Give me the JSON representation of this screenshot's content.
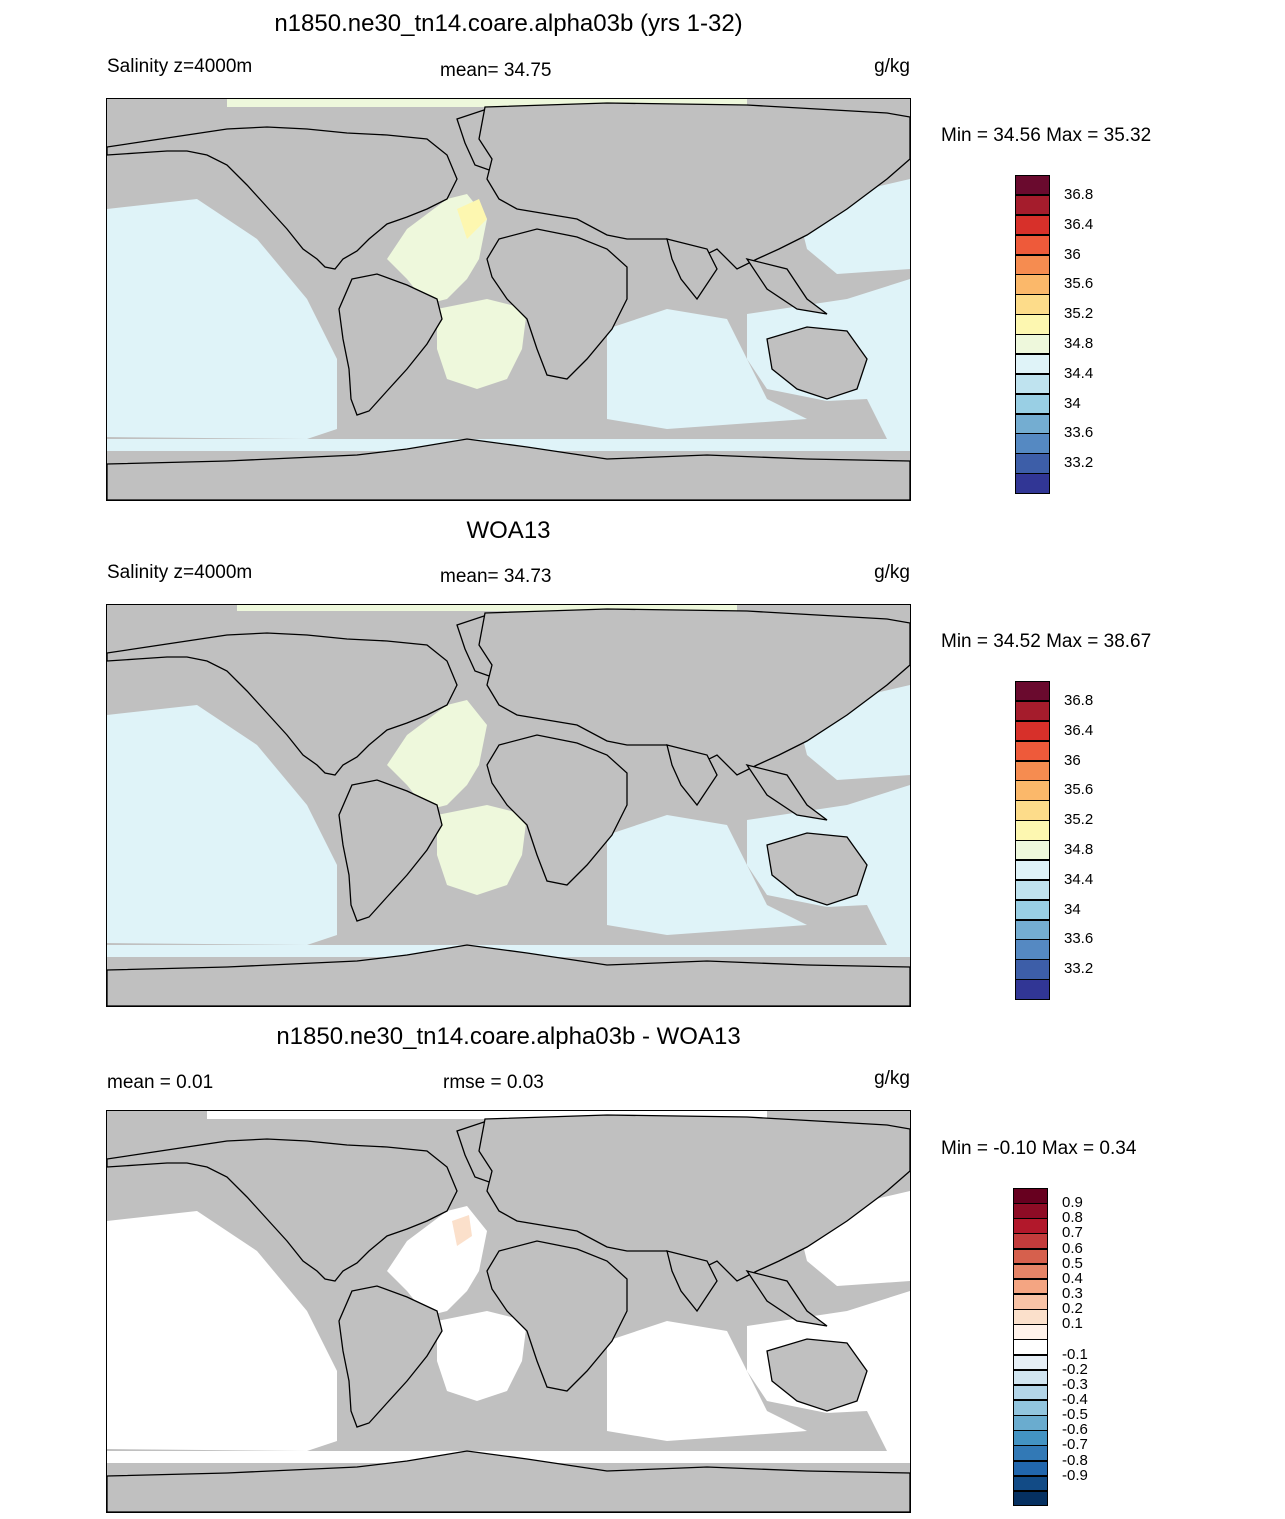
{
  "panels": [
    {
      "title": "n1850.ne30_tn14.coare.alpha03b (yrs 1-32)",
      "left_label": "Salinity z=4000m",
      "center_label": "mean=  34.75",
      "right_label": "g/kg",
      "minmax": "Min =  34.56 Max =  35.32",
      "colorbar": {
        "colors": [
          "#6a0a2e",
          "#a51c2c",
          "#d7302a",
          "#ee5a3a",
          "#f68c50",
          "#fbb86a",
          "#fddc8a",
          "#fdf7b0",
          "#eef8dc",
          "#dff3f8",
          "#bfe3ef",
          "#99cfe4",
          "#74add1",
          "#5589c2",
          "#3d5ea8",
          "#313695"
        ],
        "labels": [
          "36.8",
          "36.4",
          "36",
          "35.6",
          "35.2",
          "34.8",
          "34.4",
          "34",
          "33.6",
          "33.2"
        ]
      }
    },
    {
      "title": "WOA13",
      "left_label": "Salinity z=4000m",
      "center_label": "mean=  34.73",
      "right_label": "g/kg",
      "minmax": "Min =  34.52 Max =  38.67",
      "colorbar": {
        "colors": [
          "#6a0a2e",
          "#a51c2c",
          "#d7302a",
          "#ee5a3a",
          "#f68c50",
          "#fbb86a",
          "#fddc8a",
          "#fdf7b0",
          "#eef8dc",
          "#dff3f8",
          "#bfe3ef",
          "#99cfe4",
          "#74add1",
          "#5589c2",
          "#3d5ea8",
          "#313695"
        ],
        "labels": [
          "36.8",
          "36.4",
          "36",
          "35.6",
          "35.2",
          "34.8",
          "34.4",
          "34",
          "33.6",
          "33.2"
        ]
      }
    },
    {
      "title": "n1850.ne30_tn14.coare.alpha03b - WOA13",
      "left_label": "mean =   0.01",
      "center_label": "rmse =   0.03",
      "right_label": "g/kg",
      "minmax": "Min =  -0.10 Max =   0.34",
      "colorbar": {
        "colors": [
          "#67001f",
          "#8e0c25",
          "#b2182b",
          "#c33c3c",
          "#d6604d",
          "#e58467",
          "#f4a582",
          "#f8c3a6",
          "#fbe0cb",
          "#fff2ea",
          "#ffffff",
          "#e6eff6",
          "#d1e5f0",
          "#b3d5e8",
          "#92c5de",
          "#6aaccf",
          "#4393c3",
          "#3279b6",
          "#2166ac",
          "#124b86",
          "#053061"
        ],
        "labels": [
          "0.9",
          "0.8",
          "0.7",
          "0.6",
          "0.5",
          "0.4",
          "0.3",
          "0.2",
          "0.1",
          "-0.1",
          "-0.2",
          "-0.3",
          "-0.4",
          "-0.5",
          "-0.6",
          "-0.7",
          "-0.8",
          "-0.9"
        ]
      }
    }
  ],
  "map_colors": {
    "land": "#c0c0c0",
    "ocean_panel1": "#dff3f8",
    "atlantic_panel1": "#eef8dc",
    "ocean_panel2": "#dff3f8",
    "atlantic_panel2": "#eef8dc",
    "ocean_panel3": "#ffffff",
    "positive_panel3": "#fbe0cb"
  }
}
